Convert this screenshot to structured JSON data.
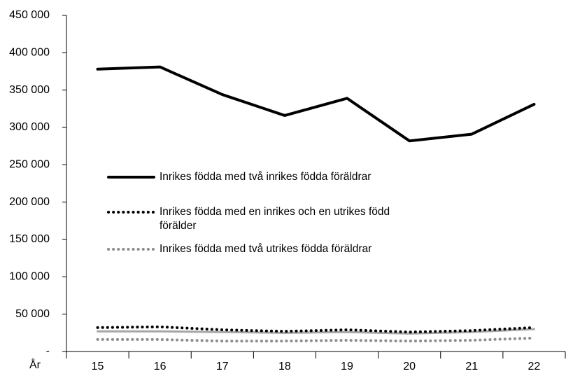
{
  "chart_data": {
    "type": "line",
    "x_label": "År",
    "categories": [
      "15",
      "16",
      "17",
      "18",
      "19",
      "20",
      "21",
      "22"
    ],
    "series": [
      {
        "name": "Inrikes födda med två inrikes födda föräldrar",
        "color": "#000000",
        "style": "solid",
        "width": 4,
        "values": [
          378000,
          381000,
          344000,
          316000,
          339000,
          282000,
          291000,
          331000
        ]
      },
      {
        "name": "Inrikes födda med en inrikes  och en utrikes född förälder",
        "color": "#000000",
        "style": "dotted",
        "width": 4,
        "values": [
          32000,
          33000,
          29000,
          27000,
          29000,
          26000,
          28000,
          32000
        ]
      },
      {
        "name": "Inrikes födda med två utrikes födda föräldrar",
        "color": "#8c8c8c",
        "style": "dotted",
        "width": 4,
        "values": [
          16000,
          16000,
          14000,
          14000,
          15000,
          14000,
          15000,
          18000
        ]
      },
      {
        "color": "#a6a6a6",
        "style": "solid",
        "width": 3,
        "values": [
          27000,
          27000,
          26000,
          25000,
          26000,
          24000,
          26000,
          30000
        ]
      }
    ],
    "ylim": [
      0,
      450000
    ],
    "yticks": [
      {
        "value": 0,
        "label": "-"
      },
      {
        "value": 50000,
        "label": "50 000"
      },
      {
        "value": 100000,
        "label": "100 000"
      },
      {
        "value": 150000,
        "label": "150 000"
      },
      {
        "value": 200000,
        "label": "200 000"
      },
      {
        "value": 250000,
        "label": "250 000"
      },
      {
        "value": 300000,
        "label": "300 000"
      },
      {
        "value": 350000,
        "label": "350 000"
      },
      {
        "value": 400000,
        "label": "400 000"
      },
      {
        "value": 450000,
        "label": "450 000"
      }
    ],
    "grid": false
  }
}
